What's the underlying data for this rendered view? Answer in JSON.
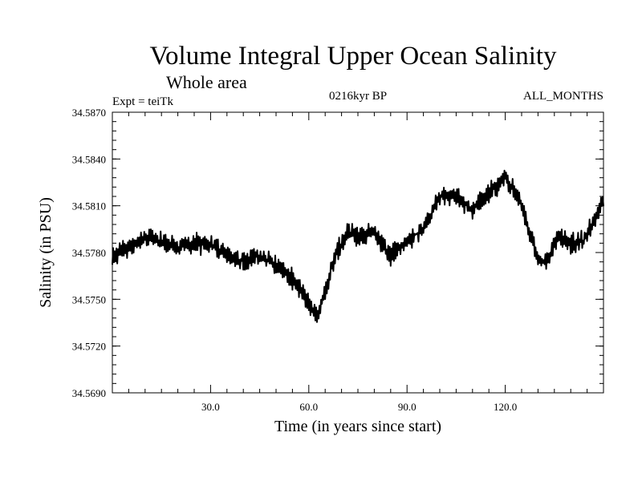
{
  "chart_data": {
    "type": "line",
    "title": "Volume Integral Upper Ocean Salinity",
    "subtitle": "Whole area",
    "experiment_label": "Expt = teiTk",
    "period_label": "0216kyr BP",
    "months_label": "ALL_MONTHS",
    "xlabel": "Time (in years since start)",
    "ylabel": "Salinity (in PSU)",
    "xlim": [
      0,
      150
    ],
    "ylim": [
      34.569,
      34.587
    ],
    "x_ticks": [
      30,
      60,
      90,
      120
    ],
    "x_tick_labels": [
      "30.0",
      "60.0",
      "90.0",
      "120.0"
    ],
    "y_ticks": [
      34.569,
      34.572,
      34.575,
      34.578,
      34.581,
      34.584,
      34.587
    ],
    "y_tick_labels": [
      "34.5690",
      "34.5720",
      "34.5750",
      "34.5780",
      "34.5810",
      "34.5840",
      "34.5870"
    ],
    "grid": false,
    "series": [
      {
        "name": "Salinity",
        "x_start": 0,
        "x_step": 0.25,
        "trend_anchors": [
          [
            0,
            34.5777
          ],
          [
            5,
            34.5783
          ],
          [
            10,
            34.579
          ],
          [
            15,
            34.5787
          ],
          [
            20,
            34.5783
          ],
          [
            25,
            34.5786
          ],
          [
            30,
            34.5785
          ],
          [
            35,
            34.5779
          ],
          [
            40,
            34.5774
          ],
          [
            45,
            34.5778
          ],
          [
            50,
            34.5773
          ],
          [
            55,
            34.5763
          ],
          [
            58,
            34.5755
          ],
          [
            61,
            34.5743
          ],
          [
            63,
            34.574
          ],
          [
            65,
            34.5755
          ],
          [
            68,
            34.5778
          ],
          [
            72,
            34.5793
          ],
          [
            76,
            34.579
          ],
          [
            80,
            34.5793
          ],
          [
            85,
            34.5778
          ],
          [
            90,
            34.5787
          ],
          [
            95,
            34.5795
          ],
          [
            100,
            34.5817
          ],
          [
            105,
            34.5816
          ],
          [
            110,
            34.5807
          ],
          [
            115,
            34.5818
          ],
          [
            120,
            34.5828
          ],
          [
            124,
            34.5815
          ],
          [
            127,
            34.5797
          ],
          [
            130,
            34.5775
          ],
          [
            133,
            34.5775
          ],
          [
            136,
            34.579
          ],
          [
            140,
            34.5786
          ],
          [
            144,
            34.5788
          ],
          [
            147,
            34.58
          ],
          [
            150,
            34.5815
          ]
        ],
        "noise_amplitude": 0.0012
      }
    ]
  }
}
